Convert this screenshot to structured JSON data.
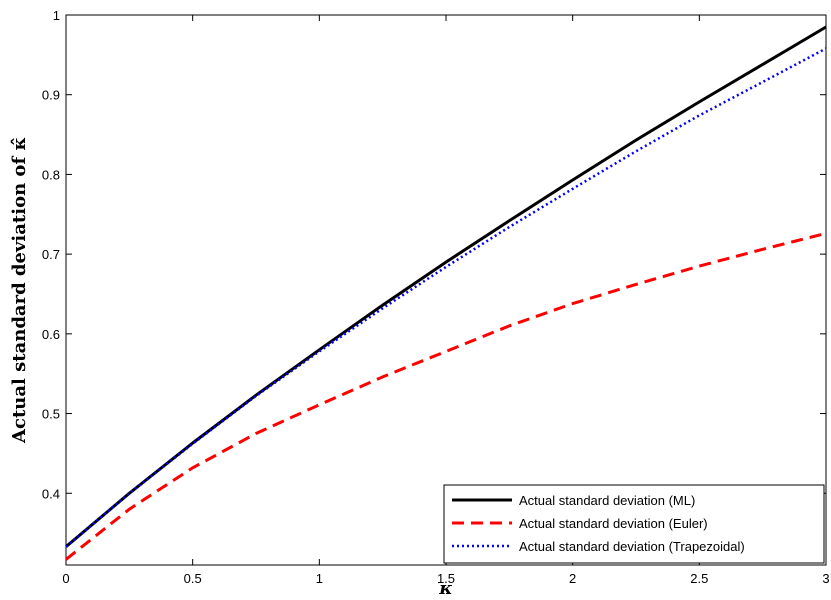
{
  "chart_data": {
    "type": "line",
    "xlabel": "κ",
    "ylabel": "Actual standard deviation of κ̂",
    "xlim": [
      0,
      3
    ],
    "ylim": [
      0.31,
      1.0
    ],
    "x_ticks": [
      "0",
      "0.5",
      "1",
      "1.5",
      "2",
      "2.5",
      "3"
    ],
    "y_ticks": [
      "0.4",
      "0.5",
      "0.6",
      "0.7",
      "0.8",
      "0.9",
      "1"
    ],
    "grid": false,
    "legend_position": "bottom-right",
    "x": [
      0,
      0.25,
      0.5,
      0.75,
      1.0,
      1.25,
      1.5,
      1.75,
      2.0,
      2.25,
      2.5,
      2.75,
      3.0
    ],
    "series": [
      {
        "name": "Actual standard deviation (ML)",
        "color": "#000000",
        "style": "solid",
        "values": [
          0.333,
          0.4,
          0.463,
          0.523,
          0.58,
          0.636,
          0.69,
          0.742,
          0.793,
          0.843,
          0.891,
          0.938,
          0.985
        ]
      },
      {
        "name": "Actual standard deviation (Euler)",
        "color": "#ff0000",
        "style": "dashed",
        "values": [
          0.317,
          0.38,
          0.432,
          0.475,
          0.511,
          0.546,
          0.578,
          0.61,
          0.638,
          0.662,
          0.685,
          0.706,
          0.726
        ]
      },
      {
        "name": "Actual standard deviation (Trapezoidal)",
        "color": "#0000ff",
        "style": "dotted",
        "values": [
          0.333,
          0.4,
          0.462,
          0.522,
          0.578,
          0.632,
          0.684,
          0.734,
          0.782,
          0.829,
          0.874,
          0.916,
          0.958
        ]
      }
    ]
  }
}
